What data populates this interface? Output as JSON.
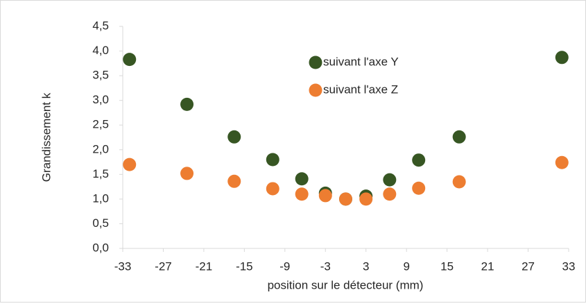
{
  "chart_data": {
    "type": "scatter",
    "xlabel": "position sur le détecteur (mm)",
    "ylabel": "Grandissement k",
    "xlim": [
      -33,
      33
    ],
    "xticks": [
      -33,
      -27,
      -21,
      -15,
      -9,
      -3,
      3,
      9,
      15,
      21,
      27,
      33
    ],
    "ylim": [
      0,
      4.5
    ],
    "yticks": [
      {
        "value": 0,
        "label": "0,0"
      },
      {
        "value": 0.5,
        "label": "0,5"
      },
      {
        "value": 1,
        "label": "1,0"
      },
      {
        "value": 1.5,
        "label": "1,5"
      },
      {
        "value": 2,
        "label": "2,0"
      },
      {
        "value": 2.5,
        "label": "2,5"
      },
      {
        "value": 3,
        "label": "3,0"
      },
      {
        "value": 3.5,
        "label": "3,5"
      },
      {
        "value": 4,
        "label": "4,0"
      },
      {
        "value": 4.5,
        "label": "4,5"
      }
    ],
    "legend": "top",
    "series": [
      {
        "name": "suivant l'axe Y",
        "color": "#375623",
        "x": [
          -32,
          -23.5,
          -16.5,
          -10.8,
          -6.5,
          -3,
          0,
          3,
          6.5,
          10.8,
          16.8,
          32
        ],
        "values": [
          3.83,
          2.92,
          2.26,
          1.8,
          1.41,
          1.12,
          1.0,
          1.06,
          1.39,
          1.79,
          2.26,
          3.87
        ]
      },
      {
        "name": "suivant l'axe Z",
        "color": "#ed7d31",
        "x": [
          -32,
          -23.5,
          -16.5,
          -10.8,
          -6.5,
          -3,
          0,
          3,
          6.5,
          10.8,
          16.8,
          32
        ],
        "values": [
          1.7,
          1.52,
          1.36,
          1.21,
          1.1,
          1.07,
          1.0,
          1.0,
          1.1,
          1.22,
          1.35,
          1.74
        ]
      }
    ]
  }
}
